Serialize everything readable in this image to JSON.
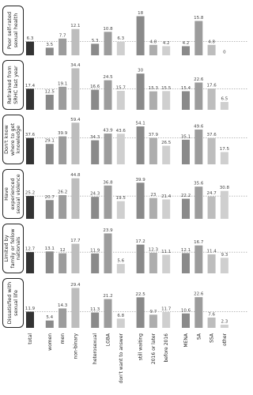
{
  "chart_data": {
    "type": "bar",
    "categories": [
      "total",
      "women",
      "men",
      "non-binary",
      "heterosexual",
      "LGBA",
      "don't want to answer",
      "still waiting",
      "2016 or later",
      "before 2016",
      "MENA",
      "SA",
      "SSA",
      "other"
    ],
    "colors": [
      "#333333",
      "#8a8a8a",
      "#9c9c9c",
      "#bdbdbd",
      "#8a8a8a",
      "#9c9c9c",
      "#cfcfcf",
      "#8a8a8a",
      "#adadad",
      "#cfcfcf",
      "#8a8a8a",
      "#9c9c9c",
      "#bdbdbd",
      "#cfcfcf"
    ],
    "reference_line": "dashed",
    "series": [
      {
        "name": "Poor self-rated sexual health",
        "ylim": [
          0,
          20
        ],
        "values": [
          6.3,
          3.5,
          7.7,
          12.1,
          5.3,
          10.8,
          6.3,
          18,
          4.8,
          4.2,
          4.2,
          15.8,
          4.8,
          0
        ]
      },
      {
        "name": "Refrained from SRHC last year",
        "ylim": [
          0,
          36
        ],
        "values": [
          17.4,
          12.5,
          19.1,
          34.4,
          16.6,
          24.5,
          15.7,
          30,
          15.3,
          15.5,
          15.4,
          22.6,
          17.6,
          6.5
        ]
      },
      {
        "name": "Don't know where to get knowledge",
        "ylim": [
          0,
          62
        ],
        "values": [
          37.6,
          29.1,
          39.9,
          59.4,
          34.3,
          43.9,
          43.6,
          54.1,
          37.9,
          26.5,
          35.1,
          49.6,
          37.6,
          17.5
        ]
      },
      {
        "name": "Have experienced sexual violence",
        "ylim": [
          0,
          48
        ],
        "values": [
          25.2,
          20.7,
          26.2,
          44.8,
          24.3,
          36.8,
          19.5,
          39.9,
          23,
          21.4,
          22.2,
          35.6,
          24.7,
          30.8
        ]
      },
      {
        "name": "Limited by family or fellow nationals",
        "ylim": [
          0,
          26
        ],
        "values": [
          12.7,
          13.1,
          12,
          17.7,
          11.9,
          23.9,
          5.6,
          17.2,
          12.3,
          11.1,
          12.1,
          16.7,
          11.4,
          9.3
        ]
      },
      {
        "name": "Dissatisfied with sexual life",
        "ylim": [
          0,
          32
        ],
        "values": [
          11.9,
          5.4,
          14.3,
          29.4,
          11.3,
          21.2,
          6.8,
          22.5,
          9.7,
          11.7,
          10.6,
          22.6,
          7.6,
          2.3
        ]
      }
    ]
  }
}
